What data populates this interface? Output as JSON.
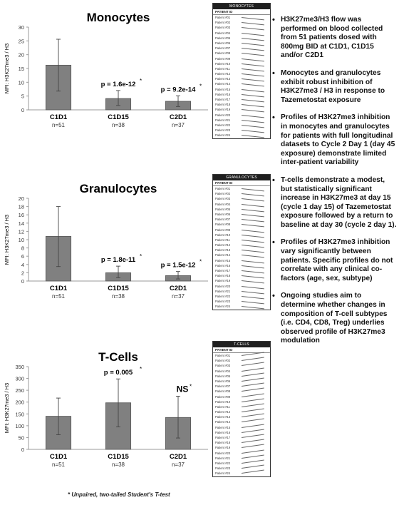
{
  "chart_data": [
    {
      "type": "bar",
      "title": "Monocytes",
      "ylabel": "MFI: H3K27me3 / H3",
      "ylim": [
        0,
        30
      ],
      "yticks": [
        0,
        5,
        10,
        15,
        20,
        25,
        30
      ],
      "categories": [
        "C1D1",
        "C1D15",
        "C2D1"
      ],
      "n_labels": [
        "n=51",
        "n=38",
        "n=37"
      ],
      "values": [
        16.2,
        4.1,
        3.1
      ],
      "error_low": [
        6.8,
        1.6,
        1.2
      ],
      "error_high": [
        25.6,
        7.0,
        5.1
      ],
      "annotations": [
        "",
        "p = 1.6e-12",
        "p = 9.2e-14"
      ],
      "grid": false
    },
    {
      "type": "bar",
      "title": "Granulocytes",
      "ylabel": "MFI: H3K27me3 / H3",
      "ylim": [
        0,
        20
      ],
      "yticks": [
        0,
        2,
        4,
        6,
        8,
        10,
        12,
        14,
        16,
        18,
        20
      ],
      "categories": [
        "C1D1",
        "C1D15",
        "C2D1"
      ],
      "n_labels": [
        "n=51",
        "n=38",
        "n=37"
      ],
      "values": [
        10.8,
        2.0,
        1.3
      ],
      "error_low": [
        3.5,
        0.8,
        0.5
      ],
      "error_high": [
        18.0,
        3.6,
        2.3
      ],
      "annotations": [
        "",
        "p = 1.8e-11",
        "p = 1.5e-12"
      ],
      "grid": false
    },
    {
      "type": "bar",
      "title": "T-Cells",
      "ylabel": "MFI: H3K27me3 / H3",
      "ylim": [
        0,
        350
      ],
      "yticks": [
        0,
        50,
        100,
        150,
        200,
        250,
        300,
        350
      ],
      "categories": [
        "C1D1",
        "C1D15",
        "C2D1"
      ],
      "n_labels": [
        "n=51",
        "n=38",
        "n=37"
      ],
      "values": [
        140,
        197,
        135
      ],
      "error_low": [
        62,
        95,
        48
      ],
      "error_high": [
        217,
        298,
        225
      ],
      "annotations": [
        "",
        "p = 0.005",
        "NS"
      ],
      "grid": false
    }
  ],
  "mini_tables": [
    {
      "header": "MONOCYTES",
      "col": "PATIENT ID"
    },
    {
      "header": "GRANULOCYTES",
      "col": "PATIENT ID"
    },
    {
      "header": "T-CELLS",
      "col": "PATIENT ID"
    }
  ],
  "patient_ids": [
    "Patient #01",
    "Patient #02",
    "Patient #03",
    "Patient #04",
    "Patient #05",
    "Patient #06",
    "Patient #07",
    "Patient #08",
    "Patient #09",
    "Patient #10",
    "Patient #11",
    "Patient #12",
    "Patient #13",
    "Patient #14",
    "Patient #15",
    "Patient #16",
    "Patient #17",
    "Patient #18",
    "Patient #19",
    "Patient #20",
    "Patient #21",
    "Patient #22",
    "Patient #23",
    "Patient #24"
  ],
  "bullets": [
    "H3K27me3/H3 flow was performed on blood collected from 51 patients dosed with 800mg BID at C1D1, C1D15 and/or C2D1",
    "Monocytes and granulocytes exhibit robust inhibition of H3K27me3 / H3 in response to Tazemetostat exposure",
    "Profiles of H3K27me3 inhibition in monocytes and granulocytes for patients with full longitudinal datasets to Cycle 2 Day 1 (day 45 exposure) demonstrate limited inter-patient variability",
    "T-cells demonstrate a modest, but statistically significant increase in H3K27me3 at day 15 (cycle 1 day 15) of Tazemetostat exposure followed by a return to baseline at day 30 (cycle 2 day 1).",
    "Profiles of H3K27me3 inhibition vary significantly between patients. Specific profiles do not correlate with any clinical co-factors (age, sex, subtype)",
    "Ongoing studies aim to determine whether changes in composition of T-cell subtypes (i.e. CD4, CD8, Treg) underlies observed profile of H3K27me3 modulation"
  ],
  "footnote": "* Unpaired, two-tailed Student's T-test",
  "colors": {
    "bar": "#808080",
    "bar_stroke": "#555555",
    "error": "#444444"
  }
}
